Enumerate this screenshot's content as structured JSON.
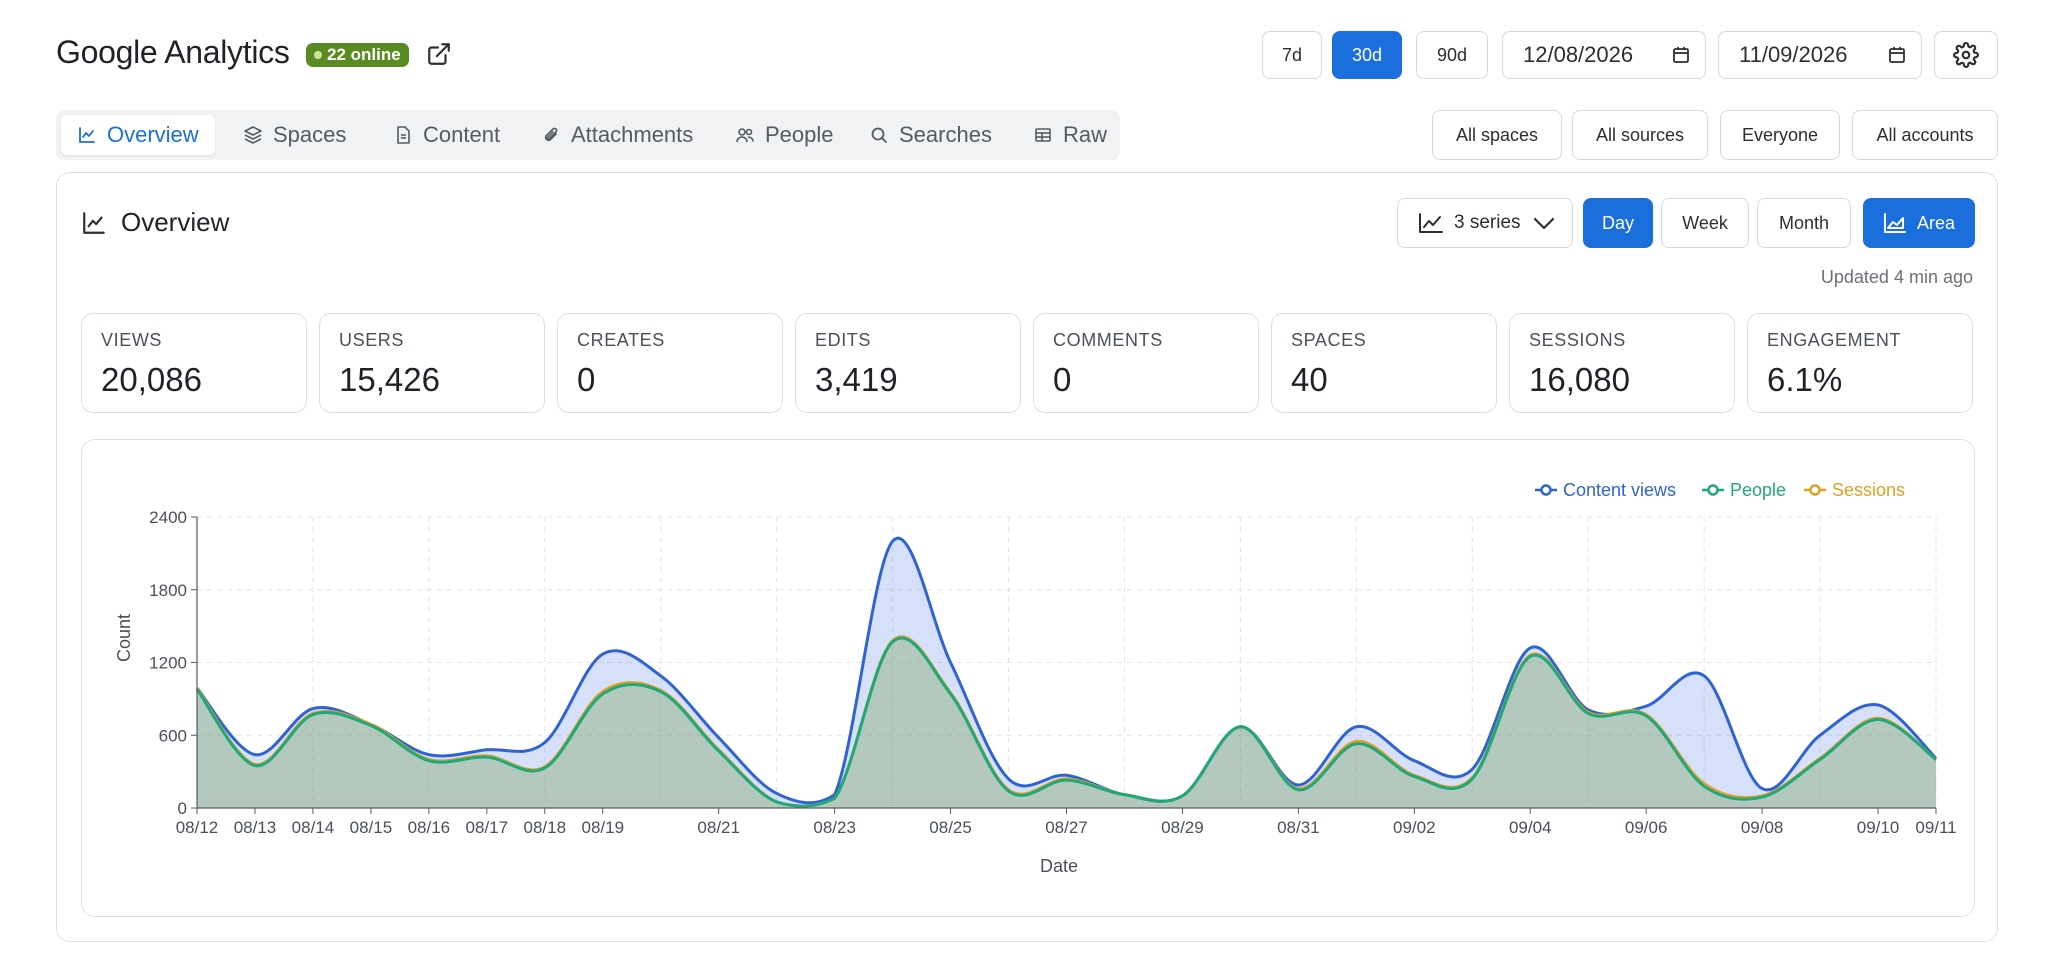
{
  "header": {
    "title": "Google Analytics",
    "online_badge": "22 online",
    "range_buttons": [
      "7d",
      "30d",
      "90d"
    ],
    "active_range": "30d",
    "date_from": "12/08/2026",
    "date_to": "11/09/2026"
  },
  "tabs": [
    {
      "label": "Overview",
      "icon": "chart-line-icon",
      "active": true
    },
    {
      "label": "Spaces",
      "icon": "layers-icon"
    },
    {
      "label": "Content",
      "icon": "document-icon"
    },
    {
      "label": "Attachments",
      "icon": "paperclip-icon"
    },
    {
      "label": "People",
      "icon": "people-icon"
    },
    {
      "label": "Searches",
      "icon": "search-icon"
    },
    {
      "label": "Raw",
      "icon": "table-icon"
    }
  ],
  "filters": [
    "All spaces",
    "All sources",
    "Everyone",
    "All accounts"
  ],
  "overview": {
    "title": "Overview",
    "series_select": "3 series",
    "granularity": [
      "Day",
      "Week",
      "Month"
    ],
    "active_granularity": "Day",
    "chart_style": "Area",
    "updated": "Updated 4 min ago"
  },
  "stats": [
    {
      "label": "VIEWS",
      "value": "20,086"
    },
    {
      "label": "USERS",
      "value": "15,426"
    },
    {
      "label": "CREATES",
      "value": "0"
    },
    {
      "label": "EDITS",
      "value": "3,419"
    },
    {
      "label": "COMMENTS",
      "value": "0"
    },
    {
      "label": "SPACES",
      "value": "40"
    },
    {
      "label": "SESSIONS",
      "value": "16,080"
    },
    {
      "label": "ENGAGEMENT",
      "value": "6.1%"
    }
  ],
  "colors": {
    "accent": "#1a6fdd",
    "badge": "#5a8a22",
    "content_views": "#2f63d4",
    "people": "#1fa87a",
    "sessions": "#e0a020"
  },
  "chart_data": {
    "type": "area",
    "xlabel": "Date",
    "ylabel": "Count",
    "ylim": [
      0,
      2400
    ],
    "yticks": [
      0,
      600,
      1200,
      1800,
      2400
    ],
    "grid": true,
    "legend_position": "top-right",
    "x": [
      "08/12",
      "08/13",
      "08/14",
      "08/15",
      "08/16",
      "08/17",
      "08/18",
      "08/19",
      "08/20",
      "08/21",
      "08/22",
      "08/23",
      "08/24",
      "08/25",
      "08/26",
      "08/27",
      "08/28",
      "08/29",
      "08/30",
      "08/31",
      "09/01",
      "09/02",
      "09/03",
      "09/04",
      "09/05",
      "09/06",
      "09/07",
      "09/08",
      "09/09",
      "09/10",
      "09/11"
    ],
    "xtick_labels": [
      "08/12",
      "08/13",
      "08/14",
      "08/15",
      "08/16",
      "08/17",
      "08/18",
      "08/19",
      "08/21",
      "08/23",
      "08/25",
      "08/27",
      "08/29",
      "08/31",
      "09/02",
      "09/04",
      "09/06",
      "09/08",
      "09/10",
      "09/11"
    ],
    "series": [
      {
        "name": "Content views",
        "values": [
          990,
          440,
          820,
          690,
          440,
          480,
          540,
          1270,
          1090,
          580,
          120,
          110,
          2200,
          1200,
          240,
          270,
          110,
          100,
          670,
          190,
          670,
          390,
          320,
          1320,
          810,
          840,
          1090,
          160,
          600,
          850,
          410
        ]
      },
      {
        "name": "People",
        "values": [
          980,
          350,
          770,
          680,
          390,
          420,
          330,
          940,
          960,
          470,
          50,
          80,
          1370,
          940,
          140,
          230,
          110,
          100,
          670,
          150,
          530,
          260,
          240,
          1250,
          780,
          760,
          180,
          90,
          400,
          730,
          400
        ]
      },
      {
        "name": "Sessions",
        "values": [
          990,
          360,
          780,
          690,
          400,
          430,
          340,
          960,
          970,
          480,
          50,
          80,
          1380,
          950,
          150,
          240,
          110,
          100,
          670,
          160,
          550,
          270,
          250,
          1260,
          790,
          770,
          200,
          100,
          410,
          740,
          400
        ]
      }
    ]
  }
}
